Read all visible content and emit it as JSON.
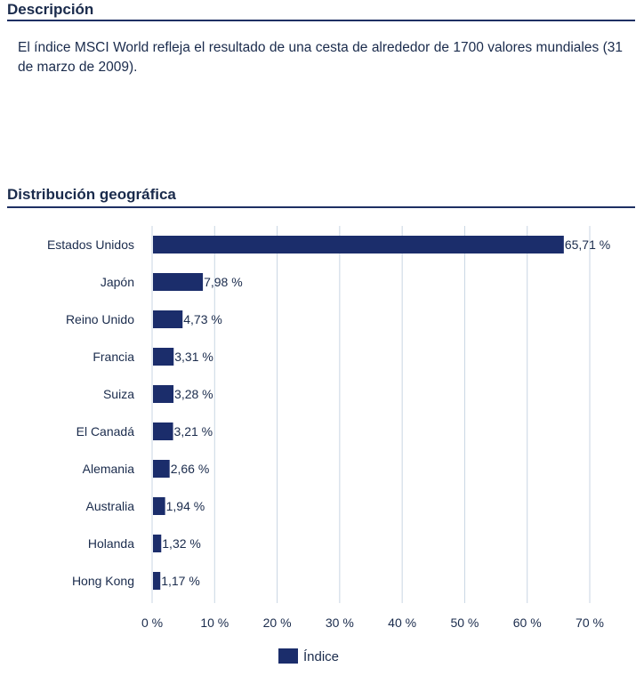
{
  "description": {
    "title": "Descripción",
    "text": "El índice MSCI World refleja el resultado de una cesta de alrededor de 1700 valores mundiales (31 de marzo de 2009)."
  },
  "distribution": {
    "title": "Distribución geográfica"
  },
  "colors": {
    "bar": "#1b2d6b",
    "grid": "#c9d6e3",
    "text": "#1a2b4c"
  },
  "chart_data": {
    "type": "bar",
    "orientation": "horizontal",
    "categories": [
      "Estados Unidos",
      "Japón",
      "Reino Unido",
      "Francia",
      "Suiza",
      "El Canadá",
      "Alemania",
      "Australia",
      "Holanda",
      "Hong Kong"
    ],
    "series": [
      {
        "name": "Índice",
        "values": [
          65.71,
          7.98,
          4.73,
          3.31,
          3.28,
          3.21,
          2.66,
          1.94,
          1.32,
          1.17
        ],
        "value_labels": [
          "65,71 %",
          "7,98 %",
          "4,73 %",
          "3,31 %",
          "3,28 %",
          "3,21 %",
          "2,66 %",
          "1,94 %",
          "1,32 %",
          "1,17 %"
        ]
      }
    ],
    "xlim": [
      0,
      70
    ],
    "xticks": [
      0,
      10,
      20,
      30,
      40,
      50,
      60,
      70
    ],
    "xtick_labels": [
      "0 %",
      "10 %",
      "20 %",
      "30 %",
      "40 %",
      "50 %",
      "60 %",
      "70 %"
    ],
    "grid": true,
    "legend": "bottom"
  }
}
